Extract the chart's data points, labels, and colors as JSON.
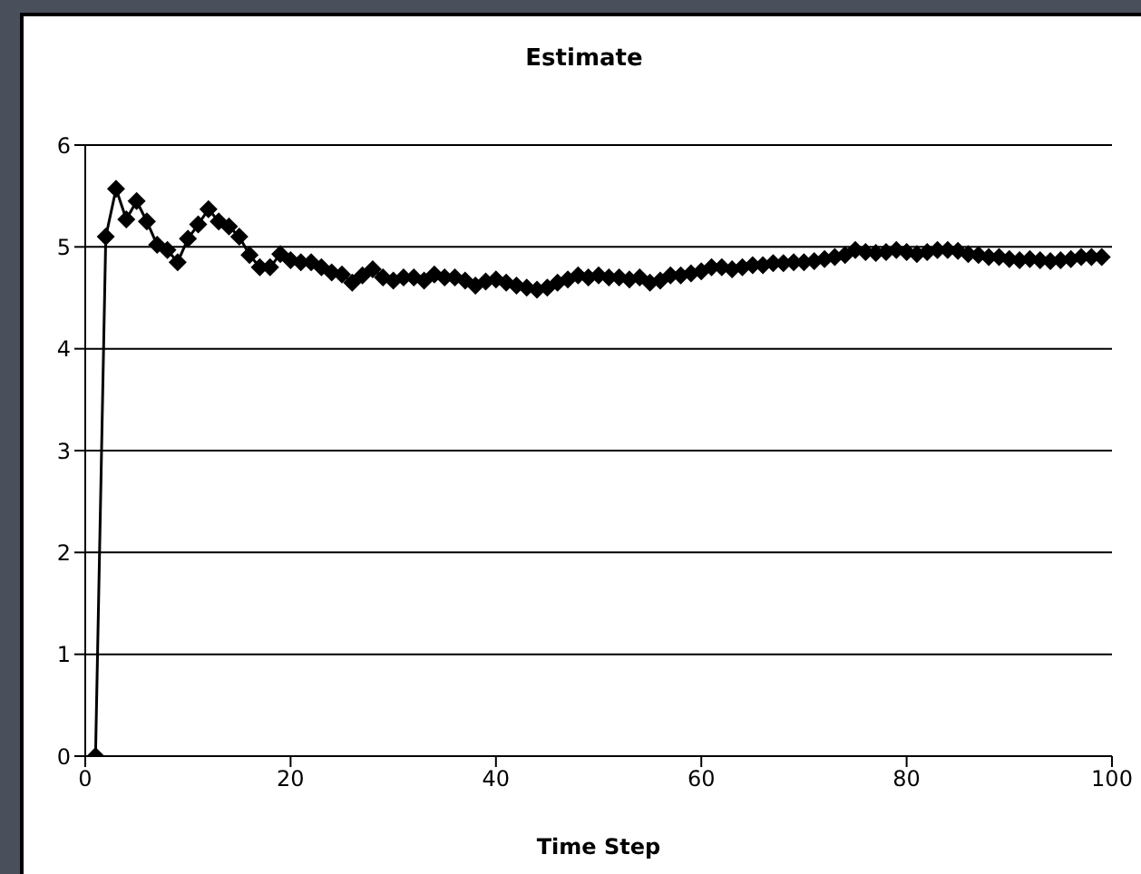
{
  "chart_data": {
    "type": "line",
    "title": "Estimate",
    "xlabel": "Time Step",
    "x": [
      1,
      2,
      3,
      4,
      5,
      6,
      7,
      8,
      9,
      10,
      11,
      12,
      13,
      14,
      15,
      16,
      17,
      18,
      19,
      20,
      21,
      22,
      23,
      24,
      25,
      26,
      27,
      28,
      29,
      30,
      31,
      32,
      33,
      34,
      35,
      36,
      37,
      38,
      39,
      40,
      41,
      42,
      43,
      44,
      45,
      46,
      47,
      48,
      49,
      50,
      51,
      52,
      53,
      54,
      55,
      56,
      57,
      58,
      59,
      60,
      61,
      62,
      63,
      64,
      65,
      66,
      67,
      68,
      69,
      70,
      71,
      72,
      73,
      74,
      75,
      76,
      77,
      78,
      79,
      80,
      81,
      82,
      83,
      84,
      85,
      86,
      87,
      88,
      89,
      90,
      91,
      92,
      93,
      94,
      95,
      96,
      97,
      98,
      99
    ],
    "series": [
      {
        "color": "#000000",
        "values": [
          0,
          5.1,
          5.57,
          5.27,
          5.45,
          5.25,
          5.02,
          4.97,
          4.85,
          5.08,
          5.22,
          5.37,
          5.25,
          5.2,
          5.1,
          4.92,
          4.8,
          4.8,
          4.93,
          4.87,
          4.85,
          4.85,
          4.8,
          4.75,
          4.73,
          4.65,
          4.72,
          4.78,
          4.7,
          4.67,
          4.7,
          4.7,
          4.67,
          4.73,
          4.7,
          4.7,
          4.67,
          4.62,
          4.66,
          4.68,
          4.65,
          4.62,
          4.6,
          4.58,
          4.6,
          4.65,
          4.68,
          4.72,
          4.7,
          4.72,
          4.7,
          4.7,
          4.68,
          4.7,
          4.65,
          4.67,
          4.72,
          4.72,
          4.74,
          4.76,
          4.8,
          4.8,
          4.78,
          4.8,
          4.82,
          4.82,
          4.84,
          4.84,
          4.85,
          4.85,
          4.86,
          4.88,
          4.9,
          4.92,
          4.97,
          4.95,
          4.94,
          4.95,
          4.97,
          4.95,
          4.93,
          4.95,
          4.97,
          4.97,
          4.96,
          4.93,
          4.92,
          4.9,
          4.9,
          4.88,
          4.87,
          4.88,
          4.87,
          4.86,
          4.87,
          4.88,
          4.9,
          4.9,
          4.9
        ]
      }
    ],
    "xlim": [
      0,
      100
    ],
    "xticks": [
      0,
      20,
      40,
      60,
      80,
      100
    ],
    "ylim": [
      0,
      6
    ],
    "yticks": [
      0,
      1,
      2,
      3,
      4,
      5,
      6
    ],
    "grid": "y",
    "marker": "diamond",
    "line_style": "solid"
  }
}
